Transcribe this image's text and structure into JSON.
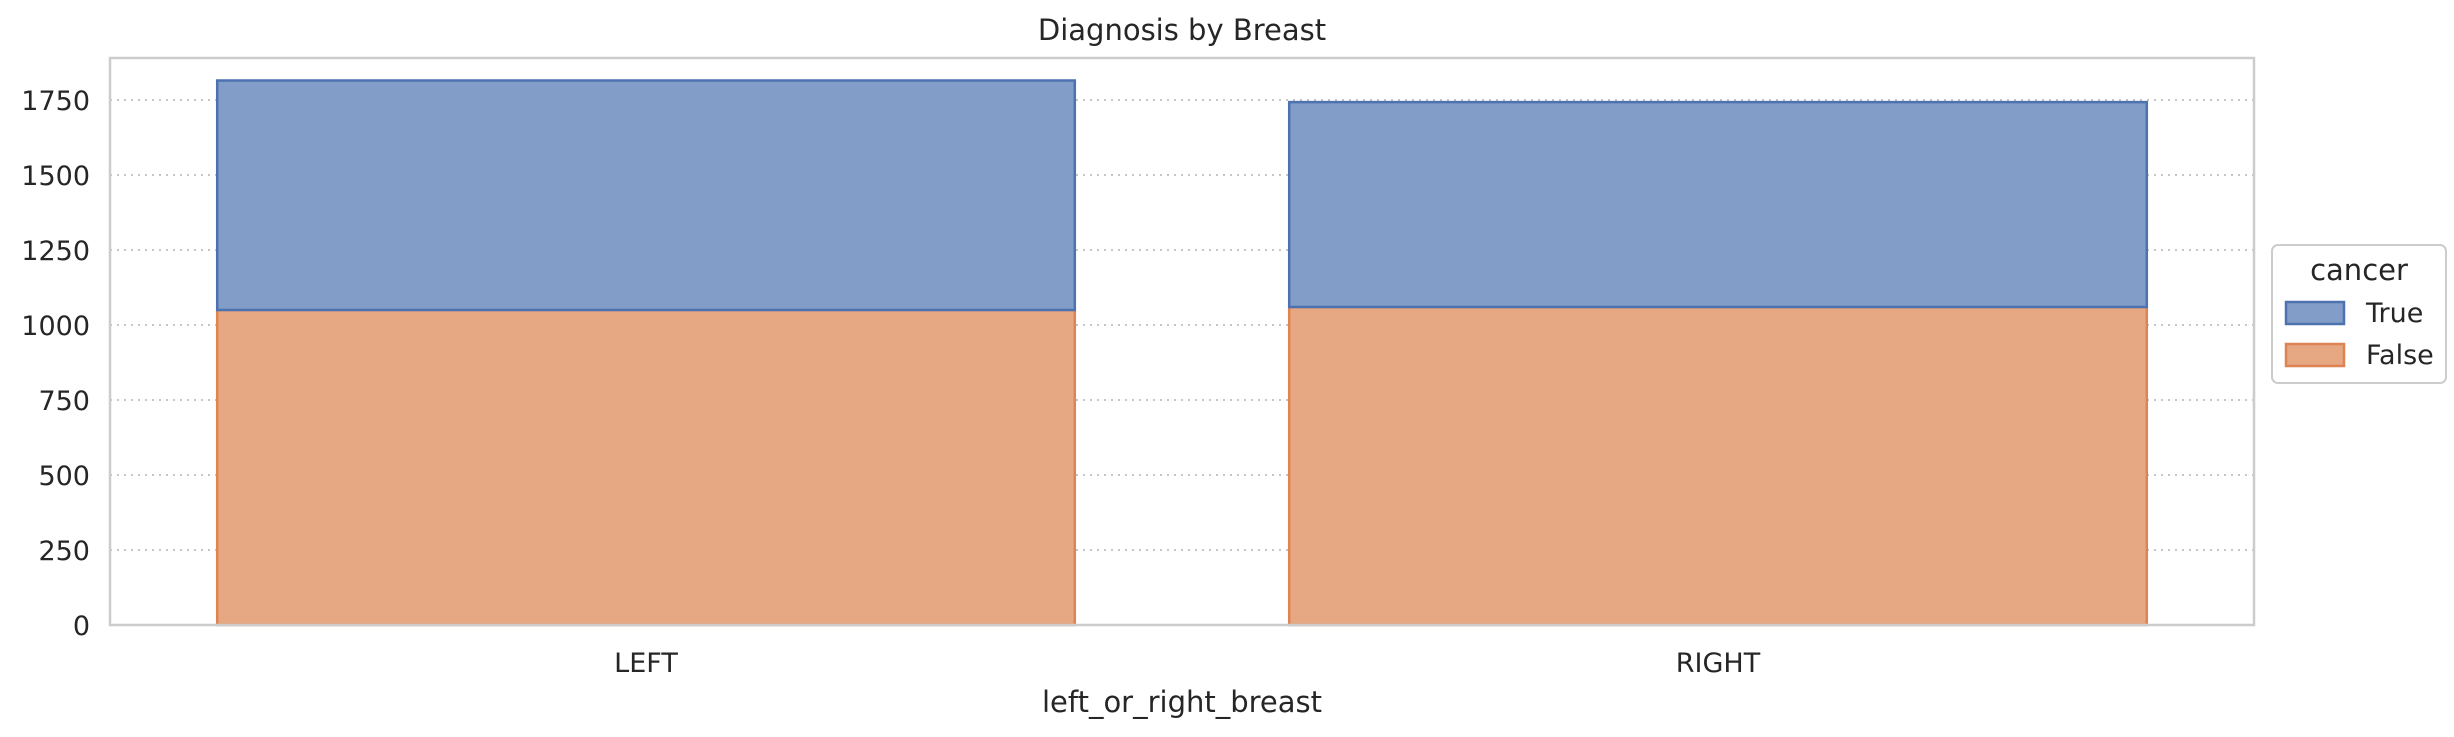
{
  "chart_data": {
    "type": "bar",
    "stacked": true,
    "title": "Diagnosis by Breast",
    "xlabel": "left_or_right_breast",
    "ylabel": "",
    "categories": [
      "LEFT",
      "RIGHT"
    ],
    "series": [
      {
        "name": "False",
        "values": [
          1050,
          1060
        ],
        "color": "#e6a783",
        "edge": "#dd8452"
      },
      {
        "name": "True",
        "values": [
          765,
          683
        ],
        "color": "#819dc8",
        "edge": "#4c72b0"
      }
    ],
    "ylim": [
      0,
      1890
    ],
    "yticks": [
      0,
      250,
      500,
      750,
      1000,
      1250,
      1500,
      1750
    ],
    "grid": true,
    "legend": {
      "title": "cancer",
      "placement": "right",
      "entries": [
        "True",
        "False"
      ]
    }
  }
}
